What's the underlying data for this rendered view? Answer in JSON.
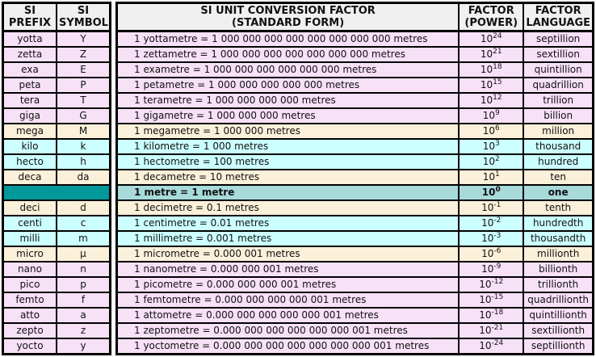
{
  "colors": {
    "pink": "#f7e1f7",
    "cream": "#fbf0da",
    "cyan": "#ccffff",
    "teal_light": "#a8dada",
    "teal_dark": "#009898",
    "header_bg": "#f0f0f0",
    "border": "#000000"
  },
  "left_table": {
    "headers": {
      "prefix": [
        "SI",
        "PREFIX"
      ],
      "symbol": [
        "SI",
        "SYMBOL"
      ]
    }
  },
  "right_table": {
    "headers": {
      "conversion": [
        "SI UNIT CONVERSION FACTOR",
        "(STANDARD FORM)"
      ],
      "factor": [
        "FACTOR",
        "(POWER)"
      ],
      "language": [
        "FACTOR",
        "LANGUAGE"
      ]
    },
    "factor_base": "10"
  },
  "rows": [
    {
      "prefix": "yotta",
      "symbol": "Y",
      "conversion": "1 yottametre = 1 000 000 000 000 000 000 000 000 metres",
      "exp": "24",
      "language": "septillion",
      "tone": "pink"
    },
    {
      "prefix": "zetta",
      "symbol": "Z",
      "conversion": "1 zettametre = 1 000 000 000 000 000 000 000 metres",
      "exp": "21",
      "language": "sextillion",
      "tone": "pink"
    },
    {
      "prefix": "exa",
      "symbol": "E",
      "conversion": "1 exametre = 1 000 000 000 000 000 000 metres",
      "exp": "18",
      "language": "quintillion",
      "tone": "pink"
    },
    {
      "prefix": "peta",
      "symbol": "P",
      "conversion": "1 petametre = 1 000 000 000 000 000 metres",
      "exp": "15",
      "language": "quadrillion",
      "tone": "pink"
    },
    {
      "prefix": "tera",
      "symbol": "T",
      "conversion": "1 terametre = 1 000 000 000 000 metres",
      "exp": "12",
      "language": "trillion",
      "tone": "pink"
    },
    {
      "prefix": "giga",
      "symbol": "G",
      "conversion": "1 gigametre = 1 000 000 000 metres",
      "exp": "9",
      "language": "billion",
      "tone": "pink"
    },
    {
      "prefix": "mega",
      "symbol": "M",
      "conversion": "1 megametre = 1 000 000 metres",
      "exp": "6",
      "language": "million",
      "tone": "cream"
    },
    {
      "prefix": "kilo",
      "symbol": "k",
      "conversion": "1 kilometre = 1 000 metres",
      "exp": "3",
      "language": "thousand",
      "tone": "cyan"
    },
    {
      "prefix": "hecto",
      "symbol": "h",
      "conversion": "1 hectometre = 100 metres",
      "exp": "2",
      "language": "hundred",
      "tone": "cyan"
    },
    {
      "prefix": "deca",
      "symbol": "da",
      "conversion": "1 decametre = 10 metres",
      "exp": "1",
      "language": "ten",
      "tone": "cream"
    },
    {
      "prefix": "",
      "symbol": "",
      "conversion": "1 metre = 1 metre",
      "exp": "0",
      "language": "one",
      "tone": "teal",
      "bold": true
    },
    {
      "prefix": "deci",
      "symbol": "d",
      "conversion": "1 decimetre = 0.1 metres",
      "exp": "-1",
      "language": "tenth",
      "tone": "cream"
    },
    {
      "prefix": "centi",
      "symbol": "c",
      "conversion": "1 centimetre = 0.01 metres",
      "exp": "-2",
      "language": "hundredth",
      "tone": "cyan"
    },
    {
      "prefix": "milli",
      "symbol": "m",
      "conversion": "1 millimetre = 0.001 metres",
      "exp": "-3",
      "language": "thousandth",
      "tone": "cyan"
    },
    {
      "prefix": "micro",
      "symbol": "µ",
      "conversion": "1 micrometre = 0.000 001 metres",
      "exp": "-6",
      "language": "millionth",
      "tone": "cream"
    },
    {
      "prefix": "nano",
      "symbol": "n",
      "conversion": "1 nanometre = 0.000 000 001 metres",
      "exp": "-9",
      "language": "billionth",
      "tone": "pink"
    },
    {
      "prefix": "pico",
      "symbol": "p",
      "conversion": "1 picometre = 0.000 000 000 001 metres",
      "exp": "-12",
      "language": "trillionth",
      "tone": "pink"
    },
    {
      "prefix": "femto",
      "symbol": "f",
      "conversion": "1 femtometre = 0.000 000 000 000 001 metres",
      "exp": "-15",
      "language": "quadrillionth",
      "tone": "pink"
    },
    {
      "prefix": "atto",
      "symbol": "a",
      "conversion": "1 attometre = 0.000 000 000 000 000 001 metres",
      "exp": "-18",
      "language": "quintillionth",
      "tone": "pink"
    },
    {
      "prefix": "zepto",
      "symbol": "z",
      "conversion": "1 zeptometre = 0.000 000 000 000 000 000 001 metres",
      "exp": "-21",
      "language": "sextillionth",
      "tone": "pink"
    },
    {
      "prefix": "yocto",
      "symbol": "y",
      "conversion": "1 yoctometre = 0.000 000 000 000 000 000 000 001 metres",
      "exp": "-24",
      "language": "septillionth",
      "tone": "pink"
    }
  ]
}
